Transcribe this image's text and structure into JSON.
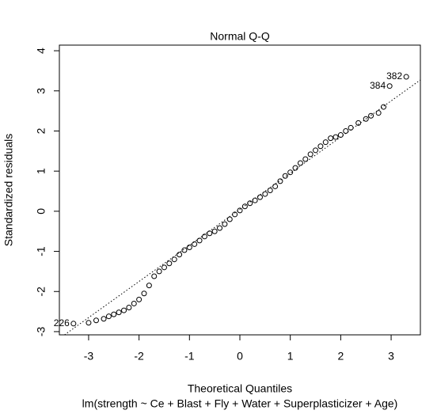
{
  "chart_data": {
    "type": "scatter",
    "title": "Normal Q-Q",
    "x_label": "Theoretical Quantiles",
    "subtitle": "lm(strength ~ Ce + Blast + Fly + Water + Superplasticizer + Age)",
    "y_label": "Standardized residuals",
    "xlim": [
      -3.58,
      3.58
    ],
    "ylim": [
      -3.08,
      4.14
    ],
    "xticks": [
      -3,
      -2,
      -1,
      0,
      1,
      2,
      3
    ],
    "yticks": [
      -3,
      -2,
      -1,
      0,
      1,
      2,
      3,
      4
    ],
    "color": "#000000",
    "reference_line": {
      "slope": 0.9,
      "intercept": 0.05
    },
    "x": [
      -3.3,
      -3.0,
      -2.85,
      -2.7,
      -2.6,
      -2.5,
      -2.4,
      -2.3,
      -2.2,
      -2.1,
      -2.0,
      -1.9,
      -1.8,
      -1.7,
      -1.6,
      -1.5,
      -1.4,
      -1.3,
      -1.2,
      -1.1,
      -1.0,
      -0.9,
      -0.8,
      -0.7,
      -0.6,
      -0.5,
      -0.4,
      -0.3,
      -0.2,
      -0.1,
      0,
      0.1,
      0.2,
      0.3,
      0.4,
      0.5,
      0.6,
      0.7,
      0.8,
      0.9,
      1.0,
      1.1,
      1.2,
      1.3,
      1.4,
      1.5,
      1.6,
      1.7,
      1.8,
      1.9,
      2.0,
      2.1,
      2.2,
      2.35,
      2.5,
      2.6,
      2.75,
      2.85,
      2.97,
      3.3
    ],
    "values": [
      -2.8,
      -2.78,
      -2.72,
      -2.68,
      -2.62,
      -2.57,
      -2.52,
      -2.47,
      -2.4,
      -2.3,
      -2.2,
      -2.05,
      -1.85,
      -1.62,
      -1.5,
      -1.4,
      -1.3,
      -1.2,
      -1.08,
      -0.97,
      -0.9,
      -0.82,
      -0.73,
      -0.63,
      -0.55,
      -0.5,
      -0.42,
      -0.32,
      -0.2,
      -0.08,
      0.02,
      0.12,
      0.2,
      0.27,
      0.35,
      0.43,
      0.52,
      0.62,
      0.75,
      0.88,
      0.97,
      1.08,
      1.2,
      1.3,
      1.42,
      1.52,
      1.62,
      1.72,
      1.82,
      1.85,
      1.9,
      2.0,
      2.08,
      2.2,
      2.3,
      2.38,
      2.45,
      2.6,
      3.12,
      3.35
    ],
    "annotations": [
      {
        "text": "382",
        "x": 3.3,
        "y": 3.35
      },
      {
        "text": "384",
        "x": 2.97,
        "y": 3.12
      },
      {
        "text": "226",
        "x": -3.3,
        "y": -2.8
      }
    ]
  }
}
